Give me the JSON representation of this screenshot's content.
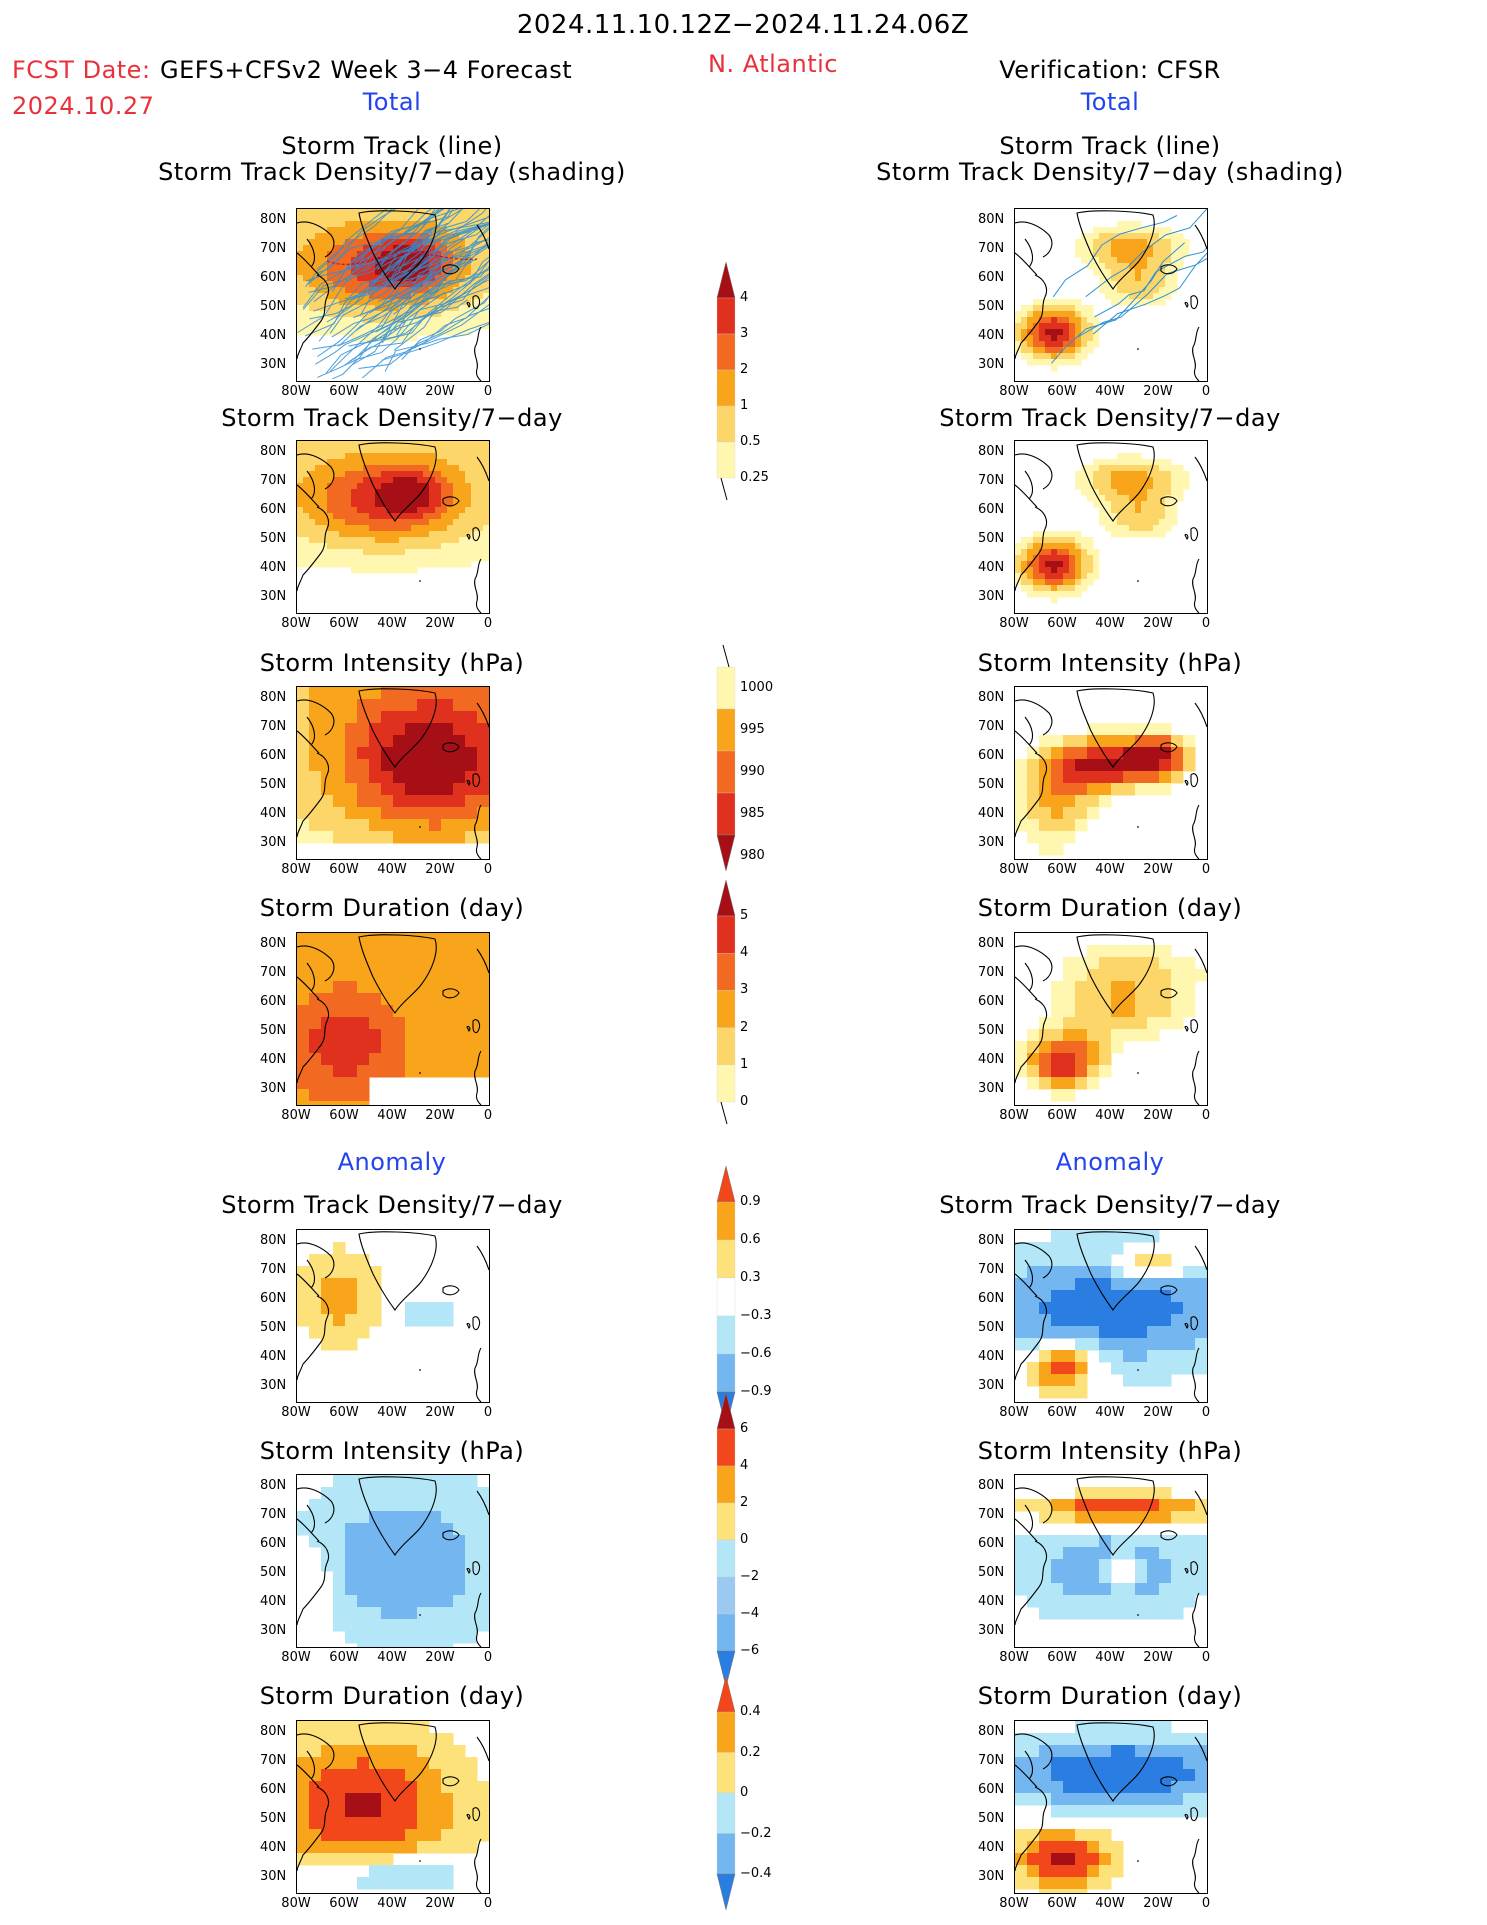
{
  "header": {
    "period": "2024.11.10.12Z−2024.11.24.06Z",
    "fcst_label": "FCST Date:",
    "fcst_date": "2024.10.27",
    "model": "GEFS+CFSv2 Week 3−4 Forecast",
    "region": "N. Atlantic",
    "verification": "Verification: CFSR"
  },
  "sections": {
    "total_left": "Total",
    "total_right": "Total",
    "anomaly_left": "Anomaly",
    "anomaly_right": "Anomaly"
  },
  "panel_titles": {
    "track_line": "Storm Track (line)",
    "track_shading": "Storm Track Density/7−day (shading)",
    "density": "Storm Track Density/7−day",
    "intensity": "Storm Intensity (hPa)",
    "duration": "Storm Duration (day)"
  },
  "axes": {
    "lat_ticks": [
      "80N",
      "70N",
      "60N",
      "50N",
      "40N",
      "30N"
    ],
    "lon_ticks": [
      "80W",
      "60W",
      "40W",
      "20W",
      "0"
    ]
  },
  "colorbars": {
    "density_total": {
      "labels": [
        "4",
        "3",
        "2",
        "1",
        "0.5",
        "0.25"
      ],
      "colors": [
        "#a50f15",
        "#e0301e",
        "#f26a21",
        "#f9a51b",
        "#fdd66a",
        "#fff6b0"
      ]
    },
    "intensity_total": {
      "labels": [
        "1000",
        "995",
        "990",
        "985",
        "980"
      ],
      "colors": [
        "#fff6b0",
        "#f9a51b",
        "#f26a21",
        "#e0301e",
        "#a50f15"
      ]
    },
    "duration_total": {
      "labels": [
        "5",
        "4",
        "3",
        "2",
        "1",
        "0"
      ],
      "colors": [
        "#a50f15",
        "#e0301e",
        "#f26a21",
        "#f9a51b",
        "#fdd66a",
        "#fff6b0"
      ]
    },
    "density_anom": {
      "labels": [
        "0.9",
        "0.6",
        "0.3",
        "−0.3",
        "−0.6",
        "−0.9"
      ],
      "colors": [
        "#f2471a",
        "#f9a51b",
        "#fde17a",
        "#ffffff",
        "#b3e7f7",
        "#74b6f0",
        "#2a7de1"
      ]
    },
    "intensity_anom": {
      "labels": [
        "6",
        "4",
        "2",
        "0",
        "−2",
        "−4",
        "−6"
      ],
      "colors": [
        "#a50f15",
        "#f2471a",
        "#f9a51b",
        "#fde17a",
        "#b3e7f7",
        "#9cc9f2",
        "#74b6f0",
        "#2a7de1"
      ]
    },
    "duration_anom": {
      "labels": [
        "0.4",
        "0.2",
        "0",
        "−0.2",
        "−0.4"
      ],
      "colors": [
        "#f2471a",
        "#f9a51b",
        "#fde17a",
        "#b3e7f7",
        "#74b6f0",
        "#2a7de1"
      ]
    }
  }
}
